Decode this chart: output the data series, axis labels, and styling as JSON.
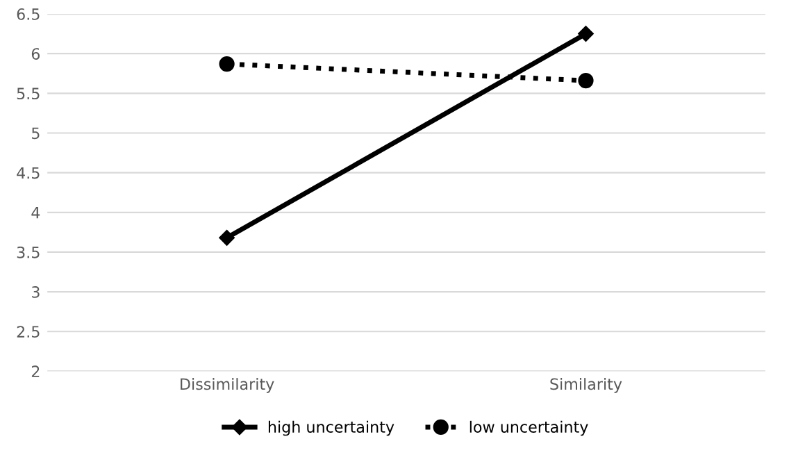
{
  "chart_data": {
    "type": "line",
    "categories": [
      "Dissimilarity",
      "Similarity"
    ],
    "series": [
      {
        "name": "high uncertainty",
        "color": "#000000",
        "values": [
          3.68,
          6.25
        ],
        "marker": "diamond",
        "line_style": "solid"
      },
      {
        "name": "low uncertainty",
        "color": "#000000",
        "values": [
          5.87,
          5.66
        ],
        "marker": "circle",
        "line_style": "dotted"
      }
    ],
    "ylim": [
      2,
      6.5
    ],
    "yticks": [
      2,
      2.5,
      3,
      3.5,
      4,
      4.5,
      5,
      5.5,
      6,
      6.5
    ],
    "grid": "y",
    "legend": "bottom"
  }
}
